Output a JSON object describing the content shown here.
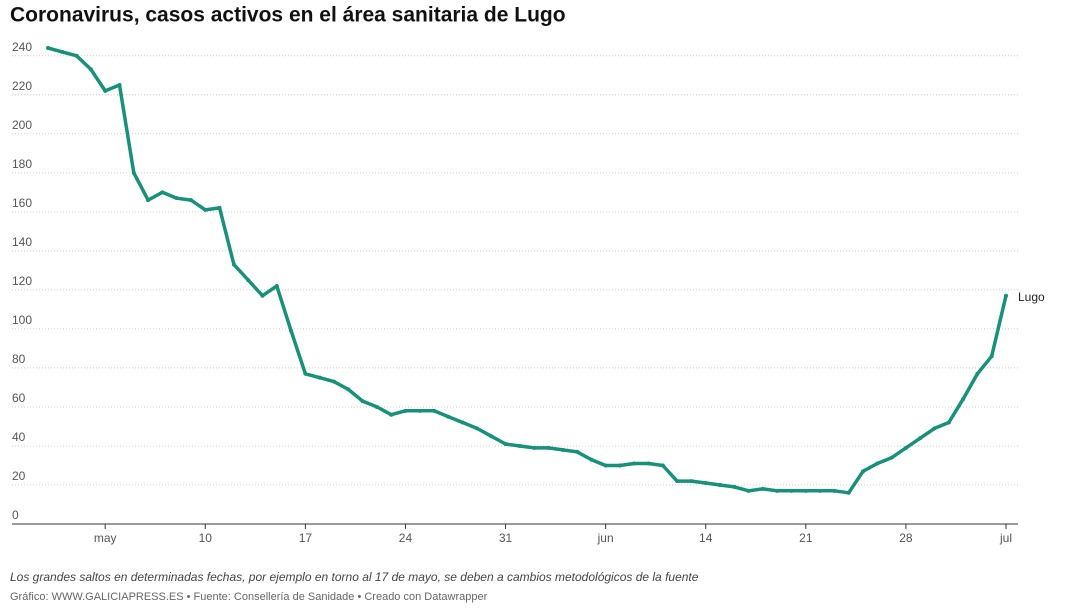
{
  "chart_data": {
    "type": "line",
    "title": "Coronavirus, casos activos en el área sanitaria de Lugo",
    "note": "Los grandes saltos en determinadas fechas, por ejemplo en torno al 17 de mayo, se deben a cambios metodológicos de la fuente",
    "source": "Gráfico: WWW.GALICIAPRESS.ES • Fuente: Consellería de Sanidade • Creado con Datawrapper",
    "x": [
      "04-29",
      "04-30",
      "05-01",
      "05-02",
      "05-03",
      "05-04",
      "05-05",
      "05-06",
      "05-07",
      "05-08",
      "05-09",
      "05-10",
      "05-11",
      "05-12",
      "05-13",
      "05-14",
      "05-15",
      "05-16",
      "05-17",
      "05-18",
      "05-19",
      "05-20",
      "05-21",
      "05-22",
      "05-23",
      "05-24",
      "05-25",
      "05-26",
      "05-27",
      "05-28",
      "05-29",
      "05-30",
      "05-31",
      "06-01",
      "06-02",
      "06-03",
      "06-04",
      "06-05",
      "06-06",
      "06-07",
      "06-08",
      "06-09",
      "06-10",
      "06-11",
      "06-12",
      "06-13",
      "06-14",
      "06-15",
      "06-16",
      "06-17",
      "06-18",
      "06-19",
      "06-20",
      "06-21",
      "06-22",
      "06-23",
      "06-24",
      "06-25",
      "06-26",
      "06-27",
      "06-28",
      "06-29",
      "06-30",
      "07-01",
      "07-02",
      "07-03",
      "07-04",
      "07-05"
    ],
    "series": [
      {
        "name": "Lugo",
        "color": "#18917a",
        "values": [
          244,
          242,
          240,
          233,
          222,
          225,
          180,
          166,
          170,
          167,
          166,
          161,
          162,
          133,
          125,
          117,
          122,
          99,
          77,
          75,
          73,
          69,
          63,
          60,
          56,
          58,
          58,
          58,
          55,
          52,
          49,
          45,
          41,
          40,
          39,
          39,
          38,
          37,
          33,
          30,
          30,
          31,
          31,
          30,
          22,
          22,
          21,
          20,
          19,
          17,
          18,
          17,
          17,
          17,
          17,
          17,
          16,
          27,
          31,
          34,
          39,
          44,
          49,
          52,
          64,
          77,
          86,
          117
        ]
      }
    ],
    "xlim": [
      "04-29",
      "07-05"
    ],
    "xticks": [
      {
        "value": "05-03",
        "label": "may"
      },
      {
        "value": "05-10",
        "label": "10"
      },
      {
        "value": "05-17",
        "label": "17"
      },
      {
        "value": "05-24",
        "label": "24"
      },
      {
        "value": "05-31",
        "label": "31"
      },
      {
        "value": "06-07",
        "label": "jun"
      },
      {
        "value": "06-14",
        "label": "14"
      },
      {
        "value": "06-21",
        "label": "21"
      },
      {
        "value": "06-28",
        "label": "28"
      },
      {
        "value": "07-05",
        "label": "jul"
      }
    ],
    "ylim": [
      0,
      245
    ],
    "yticks": [
      0,
      20,
      40,
      60,
      80,
      100,
      120,
      140,
      160,
      180,
      200,
      220,
      240
    ],
    "grid": true
  }
}
